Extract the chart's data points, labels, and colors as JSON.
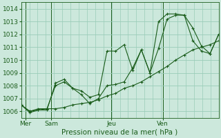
{
  "title": "",
  "xlabel": "Pression niveau de la mer( hPa )",
  "ylabel": "",
  "background_color": "#cce8dc",
  "plot_bg_color": "#cce8dc",
  "grid_color": "#99ccb8",
  "line_color": "#1a5c1a",
  "marker_color": "#1a5c1a",
  "ylim": [
    1005.5,
    1014.5
  ],
  "xlim": [
    0,
    23
  ],
  "day_labels": [
    "Mer",
    "Sam",
    "Jeu",
    "Ven"
  ],
  "day_positions": [
    0.5,
    3.5,
    10.5,
    16.5
  ],
  "day_vlines": [
    0.5,
    3.5,
    10.5,
    16.5
  ],
  "series": [
    [
      1006.5,
      1006.0,
      1006.1,
      1006.1,
      1008.2,
      1008.5,
      1007.8,
      1007.6,
      1007.1,
      1007.3,
      1010.7,
      1010.7,
      1011.2,
      1009.2,
      1010.8,
      1009.0,
      1013.0,
      1013.6,
      1013.6,
      1013.5,
      1012.5,
      1011.1,
      1010.5,
      1012.0
    ],
    [
      1006.5,
      1005.9,
      1006.1,
      1006.2,
      1006.2,
      1006.3,
      1006.5,
      1006.6,
      1006.7,
      1006.9,
      1007.2,
      1007.4,
      1007.8,
      1008.0,
      1008.3,
      1008.7,
      1009.1,
      1009.5,
      1010.0,
      1010.4,
      1010.8,
      1011.0,
      1011.2,
      1011.5
    ],
    [
      1006.5,
      1006.0,
      1006.2,
      1006.2,
      1008.0,
      1008.3,
      1007.8,
      1007.3,
      1006.6,
      1007.0,
      1008.0,
      1008.1,
      1008.3,
      1009.4,
      1010.8,
      1009.0,
      1010.9,
      1013.2,
      1013.5,
      1013.5,
      1011.5,
      1010.7,
      1010.5,
      1012.0
    ]
  ],
  "n_points": 24,
  "yticks": [
    1006,
    1007,
    1008,
    1009,
    1010,
    1011,
    1012,
    1013,
    1014
  ],
  "n_vgrid": 24,
  "xlabel_fontsize": 7.5,
  "tick_fontsize": 6.5
}
